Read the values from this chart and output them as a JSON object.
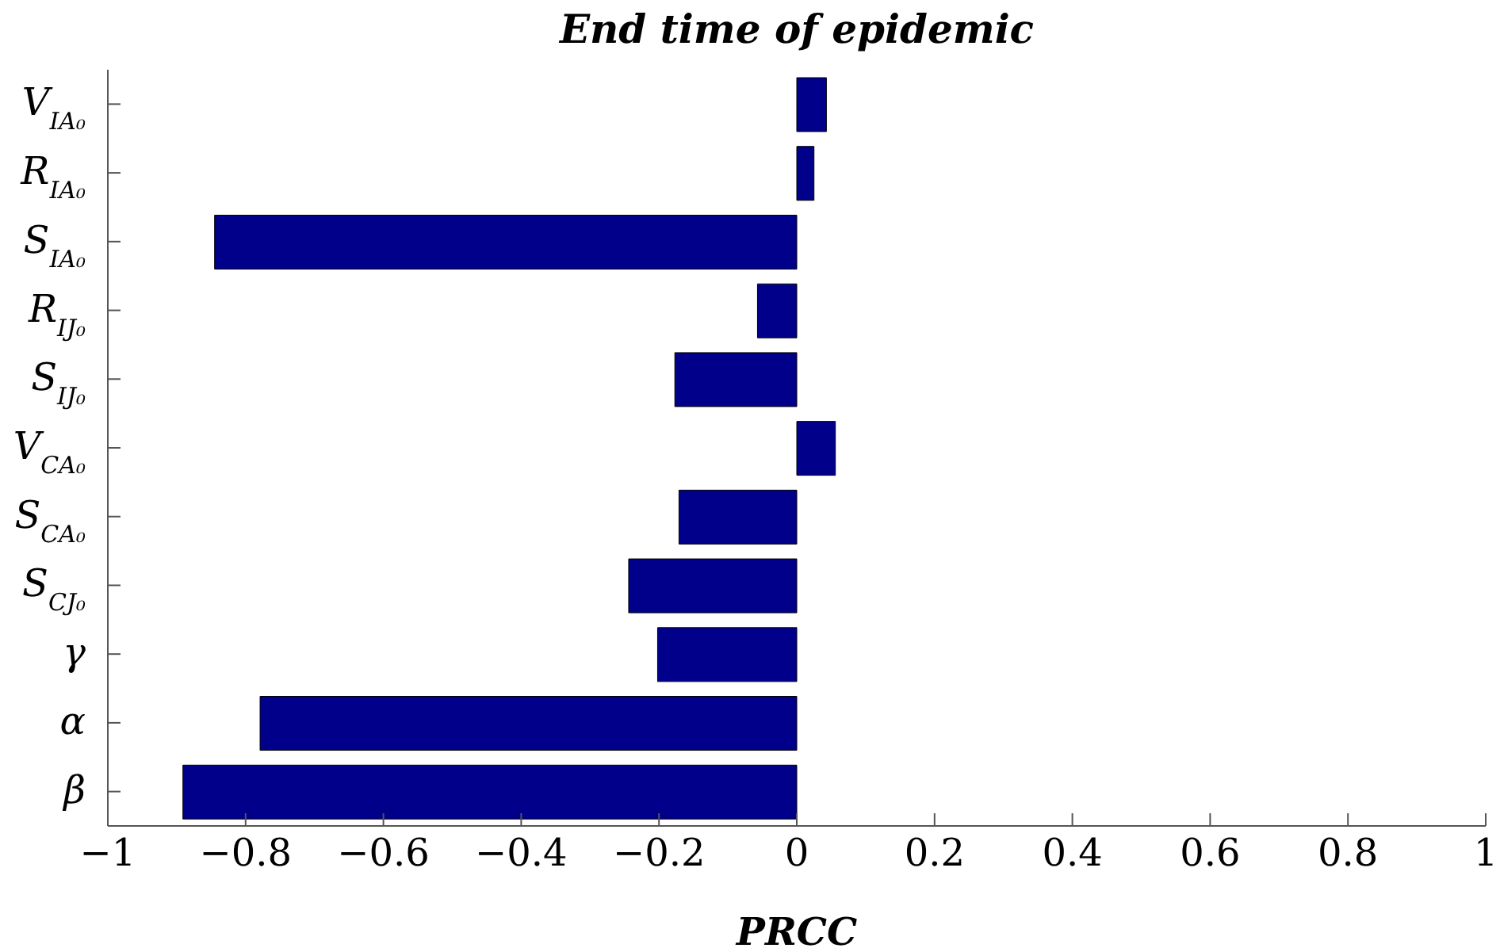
{
  "chart_data": {
    "type": "bar",
    "orientation": "horizontal",
    "title": "End time of epidemic",
    "xlabel": "PRCC",
    "categories": [
      "V$_{IA₀}$",
      "R$_{IA₀}$",
      "S$_{IA₀}$",
      "R$_{IJ₀}$",
      "S$_{IJ₀}$",
      "V$_{CA₀}$",
      "S$_{CA₀}$",
      "S$_{CJ₀}$",
      "γ",
      "α",
      "β"
    ],
    "values": [
      0.043,
      0.025,
      -0.845,
      -0.057,
      -0.177,
      0.056,
      -0.171,
      -0.244,
      -0.202,
      -0.779,
      -0.891
    ],
    "color": "#00008b",
    "xlim": [
      -1,
      1
    ],
    "xticks": [
      -1,
      -0.8,
      -0.6,
      -0.4,
      -0.2,
      0,
      0.2,
      0.4,
      0.6,
      0.8,
      1
    ],
    "grid": false
  }
}
